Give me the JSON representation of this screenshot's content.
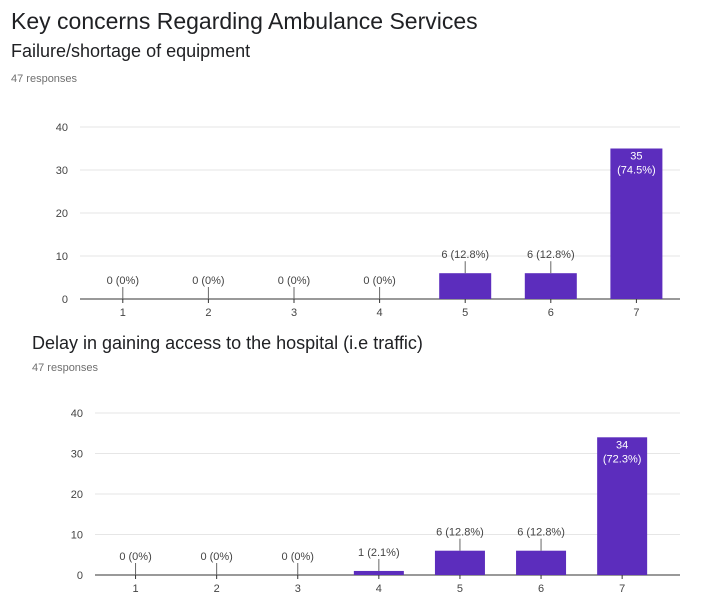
{
  "page": {
    "title": "Key concerns Regarding Ambulance Services"
  },
  "questions": [
    {
      "title": "Failure/shortage of equipment",
      "responses": "47 responses"
    },
    {
      "title": "Delay in gaining access to the hospital (i.e traffic)",
      "responses": "47 responses"
    }
  ],
  "colors": {
    "bar": "#5c2dbd",
    "grid": "#e6e6e6",
    "axis": "#333333",
    "label": "#444444"
  },
  "chart_data": [
    {
      "type": "bar",
      "categories": [
        "1",
        "2",
        "3",
        "4",
        "5",
        "6",
        "7"
      ],
      "values": [
        0,
        0,
        0,
        0,
        6,
        6,
        35
      ],
      "data_labels": [
        "0 (0%)",
        "0 (0%)",
        "0 (0%)",
        "0 (0%)",
        "6 (12.8%)",
        "6 (12.8%)",
        "35 (74.5%)"
      ],
      "ylim": [
        0,
        40
      ],
      "yticks": [
        0,
        10,
        20,
        30,
        40
      ],
      "grid": true
    },
    {
      "type": "bar",
      "categories": [
        "1",
        "2",
        "3",
        "4",
        "5",
        "6",
        "7"
      ],
      "values": [
        0,
        0,
        0,
        1,
        6,
        6,
        34
      ],
      "data_labels": [
        "0 (0%)",
        "0 (0%)",
        "0 (0%)",
        "1 (2.1%)",
        "6 (12.8%)",
        "6 (12.8%)",
        "34 (72.3%)"
      ],
      "ylim": [
        0,
        40
      ],
      "yticks": [
        0,
        10,
        20,
        30,
        40
      ],
      "grid": true
    }
  ]
}
